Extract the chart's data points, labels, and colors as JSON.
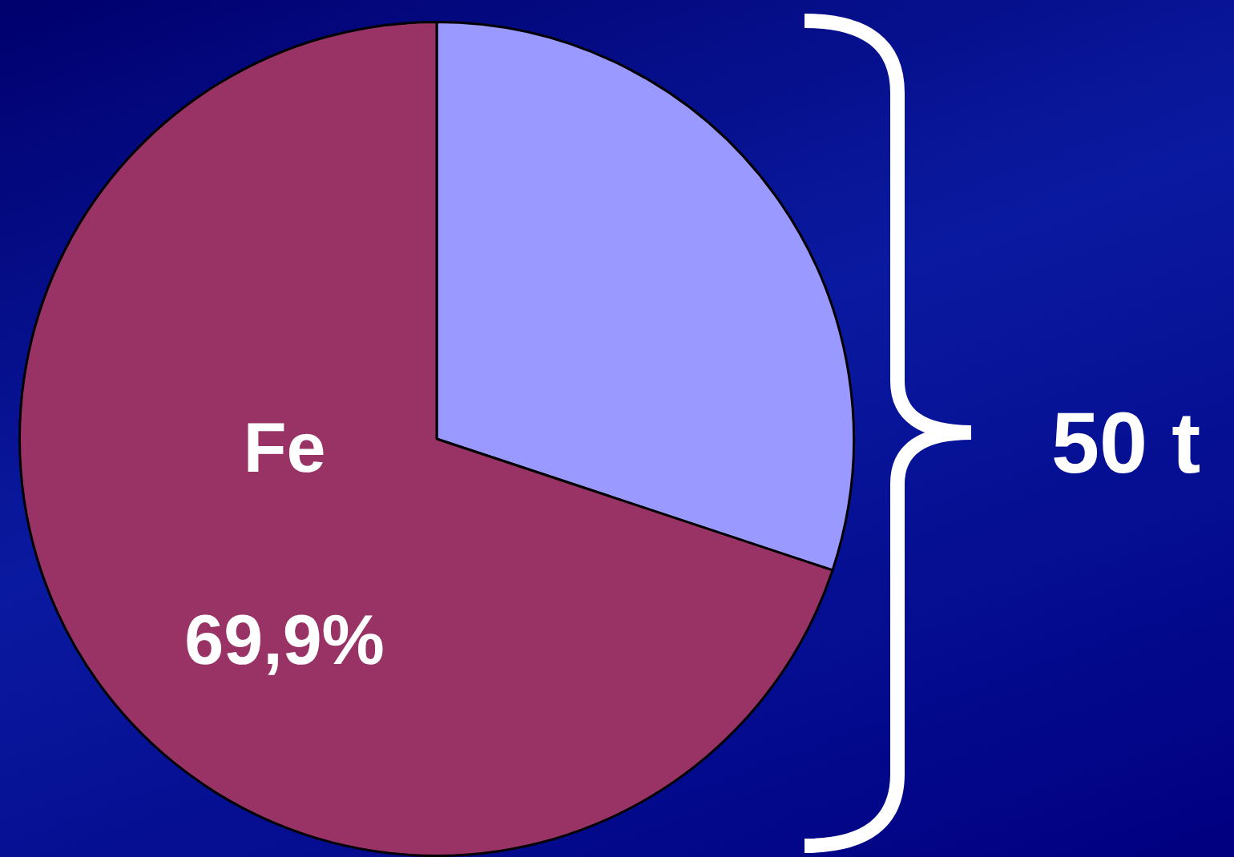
{
  "chart_data": {
    "type": "pie",
    "categories": [
      null,
      "Fe"
    ],
    "values": [
      30.1,
      69.9
    ],
    "colors": [
      "#9999ff",
      "#993366"
    ],
    "value_labels": [
      null,
      "69,9%"
    ],
    "annotations": [
      "50 t"
    ],
    "legend": false
  }
}
